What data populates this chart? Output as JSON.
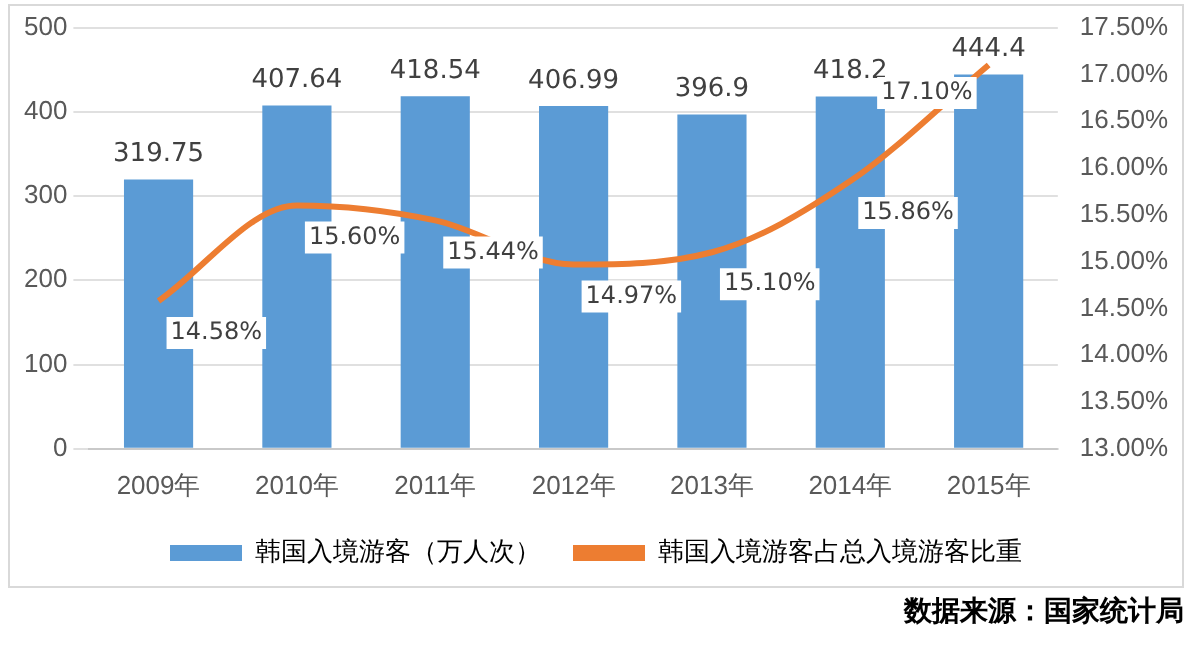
{
  "chart_data": {
    "type": "bar",
    "categories": [
      "2009年",
      "2010年",
      "2011年",
      "2012年",
      "2013年",
      "2014年",
      "2015年"
    ],
    "series": [
      {
        "name": "韩国入境游客（万人次）",
        "color": "#5b9bd5",
        "values": [
          319.75,
          407.64,
          418.54,
          406.99,
          396.9,
          418.2,
          444.4
        ],
        "value_labels": [
          "319.75",
          "407.64",
          "418.54",
          "406.99",
          "396.9",
          "418.2",
          "444.4"
        ]
      },
      {
        "name": "韩国入境游客占总入境游客比重",
        "type": "line",
        "axis": "y2",
        "color": "#ed7d31",
        "values": [
          14.58,
          15.6,
          15.44,
          14.97,
          15.1,
          15.86,
          17.1
        ],
        "value_labels": [
          "14.58%",
          "15.60%",
          "15.44%",
          "14.97%",
          "15.10%",
          "15.86%",
          "17.10%"
        ]
      }
    ],
    "ylim": [
      0,
      500
    ],
    "yticks": [
      0,
      100,
      200,
      300,
      400,
      500
    ],
    "y2lim": [
      13,
      17.5
    ],
    "y2ticks": [
      {
        "value": 13,
        "label": "13.00%"
      },
      {
        "value": 13.5,
        "label": "13.50%"
      },
      {
        "value": 14,
        "label": "14.00%"
      },
      {
        "value": 14.5,
        "label": "14.50%"
      },
      {
        "value": 15,
        "label": "15.00%"
      },
      {
        "value": 15.5,
        "label": "15.50%"
      },
      {
        "value": 16,
        "label": "16.00%"
      },
      {
        "value": 16.5,
        "label": "16.50%"
      },
      {
        "value": 17,
        "label": "17.00%"
      },
      {
        "value": 17.5,
        "label": "17.50%"
      }
    ],
    "grid": "y",
    "legend": "bottom",
    "marker": "none",
    "annotations": [
      "数据来源：国家统计局"
    ]
  }
}
